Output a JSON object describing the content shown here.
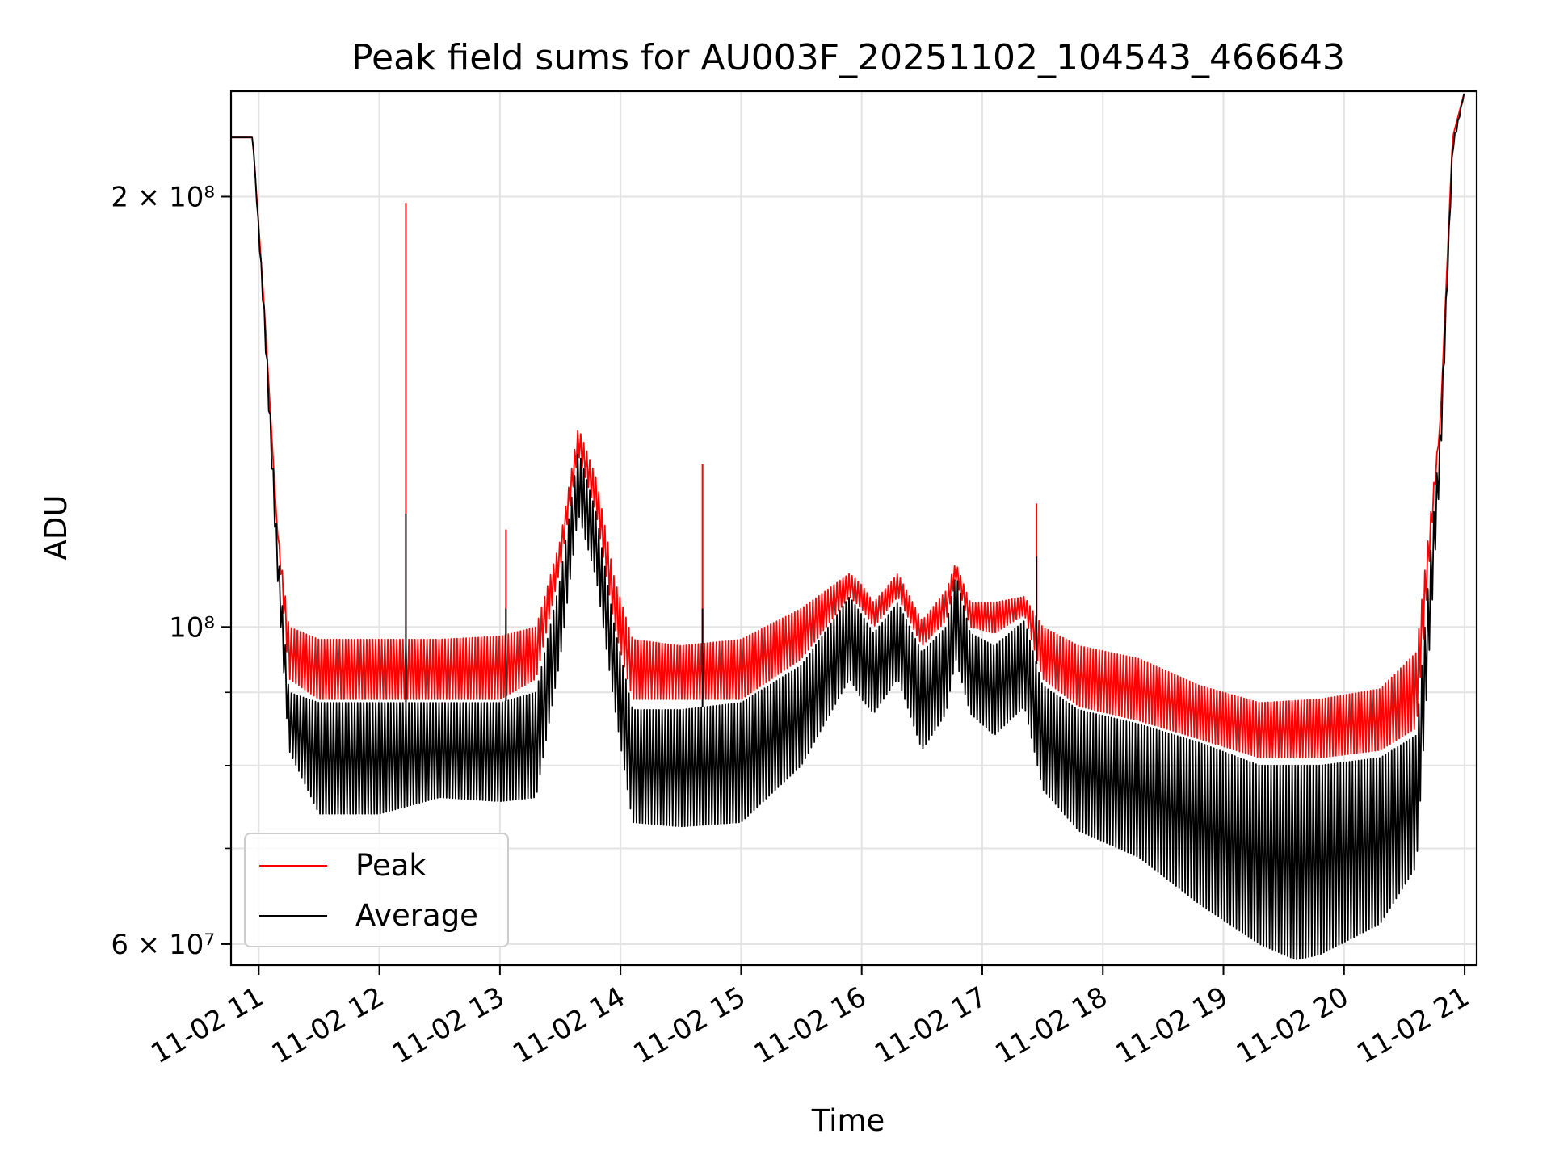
{
  "chart_data": {
    "type": "line",
    "title": "Peak field sums for AU003F_20251102_104543_466643",
    "xlabel": "Time",
    "ylabel": "ADU",
    "yscale": "log",
    "ylim": [
      58000000,
      237000000
    ],
    "xlim": [
      10.77,
      21.1
    ],
    "grid": true,
    "legend": {
      "position": "lower-left",
      "entries": [
        "Peak",
        "Average"
      ]
    },
    "x_ticks": [
      {
        "value": 11,
        "label": "11-02 11"
      },
      {
        "value": 12,
        "label": "11-02 12"
      },
      {
        "value": 13,
        "label": "11-02 13"
      },
      {
        "value": 14,
        "label": "11-02 14"
      },
      {
        "value": 15,
        "label": "11-02 15"
      },
      {
        "value": 16,
        "label": "11-02 16"
      },
      {
        "value": 17,
        "label": "11-02 17"
      },
      {
        "value": 18,
        "label": "11-02 18"
      },
      {
        "value": 19,
        "label": "11-02 19"
      },
      {
        "value": 20,
        "label": "11-02 20"
      },
      {
        "value": 21,
        "label": "11-02 21"
      }
    ],
    "y_ticks": [
      {
        "value": 60000000,
        "label": "6 × 10⁷"
      },
      {
        "value": 100000000,
        "label": "10⁸"
      },
      {
        "value": 200000000,
        "label": "2 × 10⁸"
      }
    ],
    "y_minor_ticks": [
      70000000,
      80000000,
      90000000
    ],
    "x_unit": "hour of day (11-02)",
    "series": [
      {
        "name": "Peak",
        "color": "#ff0000",
        "envelope_top": [
          [
            10.77,
            220000000.0
          ],
          [
            10.95,
            220000000.0
          ],
          [
            11.05,
            165000000.0
          ],
          [
            11.15,
            118000000.0
          ],
          [
            11.25,
            100000000.0
          ],
          [
            11.5,
            98000000.0
          ],
          [
            12.0,
            98000000.0
          ],
          [
            12.5,
            98000000.0
          ],
          [
            13.0,
            98500000.0
          ],
          [
            13.3,
            100000000.0
          ],
          [
            13.5,
            115000000.0
          ],
          [
            13.65,
            138000000.0
          ],
          [
            13.8,
            127000000.0
          ],
          [
            13.95,
            108000000.0
          ],
          [
            14.1,
            98000000.0
          ],
          [
            14.5,
            97000000.0
          ],
          [
            15.0,
            98000000.0
          ],
          [
            15.5,
            103000000.0
          ],
          [
            15.9,
            109000000.0
          ],
          [
            16.0,
            107000000.0
          ],
          [
            16.1,
            104000000.0
          ],
          [
            16.3,
            109000000.0
          ],
          [
            16.5,
            101000000.0
          ],
          [
            16.7,
            106000000.0
          ],
          [
            16.78,
            111000000.0
          ],
          [
            16.9,
            104000000.0
          ],
          [
            17.1,
            104000000.0
          ],
          [
            17.35,
            105000000.0
          ],
          [
            17.5,
            100000000.0
          ],
          [
            17.8,
            97000000.0
          ],
          [
            18.3,
            95000000.0
          ],
          [
            18.8,
            91000000.0
          ],
          [
            19.3,
            88500000.0
          ],
          [
            19.8,
            89000000.0
          ],
          [
            20.3,
            90500000.0
          ],
          [
            20.6,
            96000000.0
          ],
          [
            20.8,
            140000000.0
          ],
          [
            20.9,
            220000000.0
          ],
          [
            21.0,
            237000000.0
          ]
        ],
        "envelope_bottom": [
          [
            10.77,
            220000000.0
          ],
          [
            10.95,
            220000000.0
          ],
          [
            11.05,
            165000000.0
          ],
          [
            11.15,
            118000000.0
          ],
          [
            11.25,
            92000000.0
          ],
          [
            11.5,
            89000000.0
          ],
          [
            12.0,
            89000000.0
          ],
          [
            12.5,
            89000000.0
          ],
          [
            13.0,
            89000000.0
          ],
          [
            13.3,
            92000000.0
          ],
          [
            13.5,
            110000000.0
          ],
          [
            13.65,
            132000000.0
          ],
          [
            13.8,
            120000000.0
          ],
          [
            13.95,
            100000000.0
          ],
          [
            14.1,
            89000000.0
          ],
          [
            14.5,
            89000000.0
          ],
          [
            15.0,
            89000000.0
          ],
          [
            15.5,
            95000000.0
          ],
          [
            15.9,
            105000000.0
          ],
          [
            16.0,
            103000000.0
          ],
          [
            16.1,
            100000000.0
          ],
          [
            16.3,
            105000000.0
          ],
          [
            16.5,
            97000000.0
          ],
          [
            16.7,
            101000000.0
          ],
          [
            16.78,
            108000000.0
          ],
          [
            16.9,
            100000000.0
          ],
          [
            17.1,
            99000000.0
          ],
          [
            17.35,
            102000000.0
          ],
          [
            17.5,
            92000000.0
          ],
          [
            17.8,
            88000000.0
          ],
          [
            18.3,
            86000000.0
          ],
          [
            18.8,
            83500000.0
          ],
          [
            19.3,
            81000000.0
          ],
          [
            19.8,
            81000000.0
          ],
          [
            20.3,
            82000000.0
          ],
          [
            20.6,
            85000000.0
          ],
          [
            20.8,
            140000000.0
          ],
          [
            20.9,
            220000000.0
          ],
          [
            21.0,
            237000000.0
          ]
        ],
        "spikes": [
          [
            12.22,
            198000000.0
          ],
          [
            13.05,
            117000000.0
          ],
          [
            14.68,
            130000000.0
          ],
          [
            17.45,
            122000000.0
          ]
        ]
      },
      {
        "name": "Average",
        "color": "#000000",
        "envelope_top": [
          [
            10.77,
            220000000.0
          ],
          [
            10.95,
            220000000.0
          ],
          [
            11.05,
            165000000.0
          ],
          [
            11.15,
            116000000.0
          ],
          [
            11.25,
            90000000.0
          ],
          [
            11.5,
            88500000.0
          ],
          [
            12.0,
            88500000.0
          ],
          [
            12.5,
            88500000.0
          ],
          [
            13.0,
            88500000.0
          ],
          [
            13.3,
            90000000.0
          ],
          [
            13.5,
            108000000.0
          ],
          [
            13.65,
            133000000.0
          ],
          [
            13.8,
            120000000.0
          ],
          [
            13.95,
            100000000.0
          ],
          [
            14.1,
            87500000.0
          ],
          [
            14.5,
            87500000.0
          ],
          [
            15.0,
            88500000.0
          ],
          [
            15.5,
            94000000.0
          ],
          [
            15.9,
            105000000.0
          ],
          [
            16.0,
            102000000.0
          ],
          [
            16.1,
            99000000.0
          ],
          [
            16.3,
            104000000.0
          ],
          [
            16.5,
            96000000.0
          ],
          [
            16.7,
            100000000.0
          ],
          [
            16.78,
            109000000.0
          ],
          [
            16.9,
            99000000.0
          ],
          [
            17.1,
            97000000.0
          ],
          [
            17.35,
            101000000.0
          ],
          [
            17.5,
            91000000.0
          ],
          [
            17.8,
            87500000.0
          ],
          [
            18.3,
            85500000.0
          ],
          [
            18.8,
            83000000.0
          ],
          [
            19.3,
            80000000.0
          ],
          [
            19.8,
            80000000.0
          ],
          [
            20.3,
            81000000.0
          ],
          [
            20.6,
            84000000.0
          ],
          [
            20.8,
            138000000.0
          ],
          [
            20.9,
            218000000.0
          ],
          [
            21.0,
            237000000.0
          ]
        ],
        "envelope_bottom": [
          [
            10.77,
            220000000.0
          ],
          [
            10.95,
            220000000.0
          ],
          [
            11.05,
            160000000.0
          ],
          [
            11.15,
            110000000.0
          ],
          [
            11.25,
            82000000.0
          ],
          [
            11.5,
            74000000.0
          ],
          [
            12.0,
            74000000.0
          ],
          [
            12.5,
            76000000.0
          ],
          [
            13.0,
            75500000.0
          ],
          [
            13.3,
            76000000.0
          ],
          [
            13.5,
            95000000.0
          ],
          [
            13.65,
            120000000.0
          ],
          [
            13.8,
            108000000.0
          ],
          [
            13.95,
            88000000.0
          ],
          [
            14.1,
            73000000.0
          ],
          [
            14.5,
            72500000.0
          ],
          [
            15.0,
            73000000.0
          ],
          [
            15.5,
            80000000.0
          ],
          [
            15.9,
            92000000.0
          ],
          [
            16.0,
            89000000.0
          ],
          [
            16.1,
            87000000.0
          ],
          [
            16.3,
            92000000.0
          ],
          [
            16.5,
            82000000.0
          ],
          [
            16.7,
            87000000.0
          ],
          [
            16.78,
            95000000.0
          ],
          [
            16.9,
            87000000.0
          ],
          [
            17.1,
            84000000.0
          ],
          [
            17.35,
            88000000.0
          ],
          [
            17.5,
            77000000.0
          ],
          [
            17.8,
            72000000.0
          ],
          [
            18.3,
            69000000.0
          ],
          [
            18.8,
            64000000.0
          ],
          [
            19.3,
            60000000.0
          ],
          [
            19.6,
            58500000.0
          ],
          [
            19.8,
            59000000.0
          ],
          [
            20.3,
            62000000.0
          ],
          [
            20.6,
            68000000.0
          ],
          [
            20.8,
            130000000.0
          ],
          [
            20.9,
            215000000.0
          ],
          [
            21.0,
            237000000.0
          ]
        ],
        "spikes": [
          [
            12.22,
            120000000.0
          ],
          [
            13.05,
            103000000.0
          ],
          [
            14.68,
            103000000.0
          ],
          [
            17.45,
            112000000.0
          ]
        ]
      }
    ]
  }
}
